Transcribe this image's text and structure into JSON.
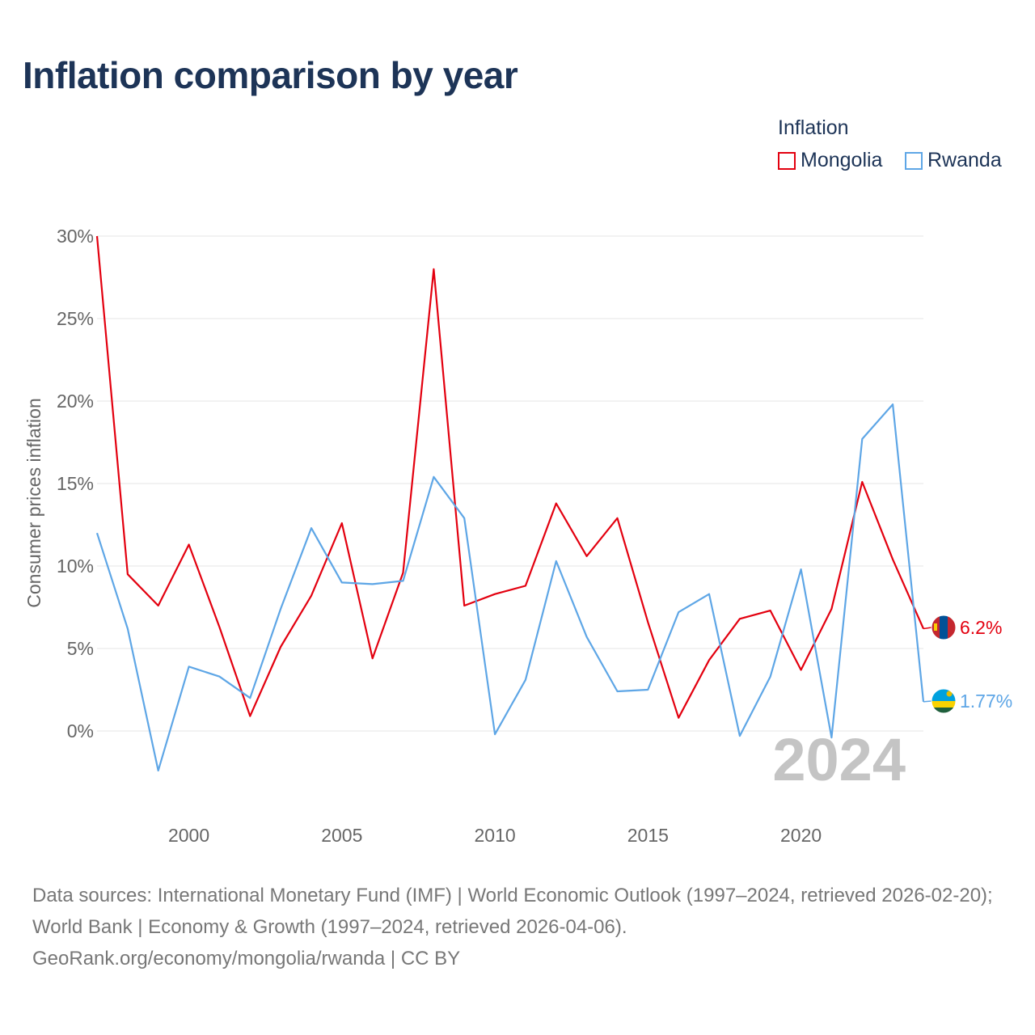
{
  "title": "Inflation comparison by year",
  "legend": {
    "title": "Inflation",
    "items": [
      {
        "label": "Mongolia",
        "color": "#e3000f"
      },
      {
        "label": "Rwanda",
        "color": "#5ea6e6"
      }
    ]
  },
  "chart_data": {
    "type": "line",
    "ylabel": "Consumer prices inflation",
    "xlabel": "",
    "xlim": [
      1997,
      2024
    ],
    "ylim": [
      -3,
      30
    ],
    "x_ticks": [
      2000,
      2005,
      2010,
      2015,
      2020
    ],
    "y_ticks": [
      {
        "value": 0,
        "label": "0%"
      },
      {
        "value": 5,
        "label": "5%"
      },
      {
        "value": 10,
        "label": "10%"
      },
      {
        "value": 15,
        "label": "15%"
      },
      {
        "value": 20,
        "label": "20%"
      },
      {
        "value": 25,
        "label": "25%"
      },
      {
        "value": 30,
        "label": "30%"
      }
    ],
    "year_watermark": "2024",
    "x": [
      1997,
      1998,
      1999,
      2000,
      2001,
      2002,
      2003,
      2004,
      2005,
      2006,
      2007,
      2008,
      2009,
      2010,
      2011,
      2012,
      2013,
      2014,
      2015,
      2016,
      2017,
      2018,
      2019,
      2020,
      2021,
      2022,
      2023,
      2024
    ],
    "series": [
      {
        "name": "Mongolia",
        "color": "#e3000f",
        "end_label": "6.2%",
        "flag": "mongolia-flag",
        "values": [
          30.0,
          9.5,
          7.6,
          11.3,
          6.3,
          0.9,
          5.1,
          8.2,
          12.6,
          4.4,
          9.6,
          28.0,
          7.6,
          8.3,
          8.8,
          13.8,
          10.6,
          12.9,
          6.6,
          0.8,
          4.3,
          6.8,
          7.3,
          3.7,
          7.4,
          15.1,
          10.4,
          6.2
        ]
      },
      {
        "name": "Rwanda",
        "color": "#5ea6e6",
        "end_label": "1.77%",
        "flag": "rwanda-flag",
        "values": [
          12.0,
          6.2,
          -2.4,
          3.9,
          3.3,
          2.0,
          7.4,
          12.3,
          9.0,
          8.9,
          9.1,
          15.4,
          12.9,
          -0.2,
          3.1,
          10.3,
          5.7,
          2.4,
          2.5,
          7.2,
          8.3,
          -0.3,
          3.3,
          9.8,
          -0.4,
          17.7,
          19.8,
          1.77
        ]
      }
    ]
  },
  "footer": {
    "sources": "Data sources: International Monetary Fund (IMF) | World Economic Outlook (1997–2024, retrieved 2026-02-20); World Bank | Economy & Growth (1997–2024, retrieved 2026-04-06).",
    "credit": "GeoRank.org/economy/mongolia/rwanda | CC BY"
  }
}
